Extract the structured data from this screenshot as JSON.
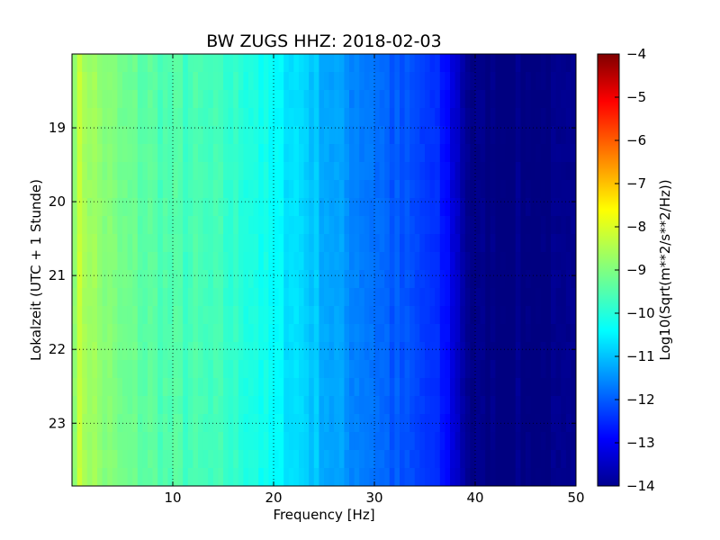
{
  "chart_data": {
    "type": "heatmap",
    "title": "BW ZUGS HHZ: 2018-02-03",
    "xlabel": "Frequency [Hz]",
    "ylabel": "Lokalzeit (UTC + 1 Stunde)",
    "xlim": [
      0,
      50
    ],
    "ylim_hours": [
      18.0,
      23.85
    ],
    "y_inverted": true,
    "x_ticks": [
      10,
      20,
      30,
      40,
      50
    ],
    "y_ticks": [
      19,
      20,
      21,
      22,
      23
    ],
    "grid": true,
    "grid_style": "dotted",
    "colormap": "jet",
    "colorbar": {
      "label": "Log10(Sqrt(m**2/s**2/Hz))",
      "range": [
        -14,
        -4
      ],
      "ticks": [
        -4,
        -5,
        -6,
        -7,
        -8,
        -9,
        -10,
        -11,
        -12,
        -13,
        -14
      ]
    },
    "spectrum_profile": {
      "frequency_hz": [
        0,
        0.5,
        2,
        5,
        10,
        15,
        18,
        20,
        22,
        24,
        25,
        27,
        30,
        32,
        35,
        37,
        38,
        39,
        40,
        45,
        50
      ],
      "log10_amplitude": [
        -9.0,
        -8.4,
        -8.7,
        -9.2,
        -9.5,
        -9.7,
        -9.9,
        -10.3,
        -10.5,
        -10.8,
        -11.0,
        -11.3,
        -11.6,
        -11.9,
        -12.2,
        -12.6,
        -13.2,
        -13.7,
        -14.0,
        -14.0,
        -14.0
      ]
    }
  }
}
